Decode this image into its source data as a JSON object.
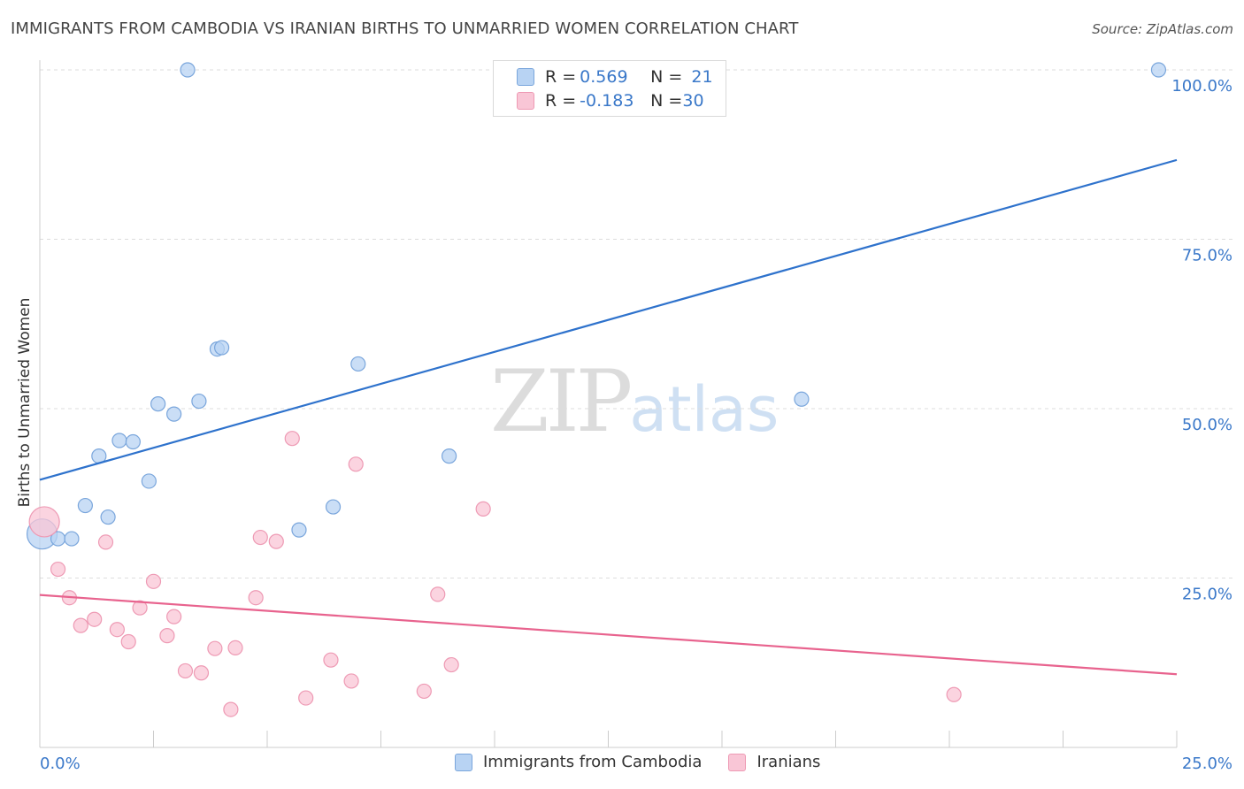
{
  "header": {
    "title": "IMMIGRANTS FROM CAMBODIA VS IRANIAN BIRTHS TO UNMARRIED WOMEN CORRELATION CHART",
    "source": "Source: ZipAtlas.com"
  },
  "watermark": {
    "zip": "ZIP",
    "atlas": "atlas"
  },
  "legend": {
    "rows": [
      {
        "r_label": "R = ",
        "r_value": "0.569",
        "n_label": "N = ",
        "n_value": "21"
      },
      {
        "r_label": "R = ",
        "r_value": "-0.183",
        "n_label": "N = ",
        "n_value": "30"
      }
    ]
  },
  "colors": {
    "blue_fill": "#b8d3f3",
    "blue_stroke": "#7aa6dc",
    "blue_line": "#2e72cc",
    "pink_fill": "#f9c6d6",
    "pink_stroke": "#ee9ab4",
    "pink_line": "#e8638e",
    "tick_label": "#3a78c9",
    "grid": "#dddddd"
  },
  "chart_data": {
    "type": "scatter",
    "title": "IMMIGRANTS FROM CAMBODIA VS IRANIAN BIRTHS TO UNMARRIED WOMEN CORRELATION CHART",
    "xlabel": "",
    "ylabel": "Births to Unmarried Women",
    "xlim": [
      0,
      25
    ],
    "ylim": [
      0,
      104
    ],
    "x_tick_labels": [
      "0.0%",
      "25.0%"
    ],
    "y_ticks": [
      25,
      50,
      75,
      100
    ],
    "y_tick_labels": [
      "25.0%",
      "50.0%",
      "75.0%",
      "100.0%"
    ],
    "grid": true,
    "legend_position": "bottom-center",
    "series": [
      {
        "name": "Immigrants from Cambodia",
        "color": "#7aa6dc",
        "points": [
          {
            "x": 0.05,
            "y": 31.5,
            "big": true
          },
          {
            "x": 0.4,
            "y": 30.8
          },
          {
            "x": 0.7,
            "y": 30.8
          },
          {
            "x": 1.0,
            "y": 35.7
          },
          {
            "x": 1.3,
            "y": 43.0
          },
          {
            "x": 1.5,
            "y": 34.0
          },
          {
            "x": 1.75,
            "y": 45.3
          },
          {
            "x": 2.05,
            "y": 45.1
          },
          {
            "x": 2.4,
            "y": 39.3
          },
          {
            "x": 2.6,
            "y": 50.7
          },
          {
            "x": 2.95,
            "y": 49.2
          },
          {
            "x": 3.25,
            "y": 100.0
          },
          {
            "x": 3.5,
            "y": 51.1
          },
          {
            "x": 3.9,
            "y": 58.8
          },
          {
            "x": 4.0,
            "y": 59.0
          },
          {
            "x": 5.7,
            "y": 32.1
          },
          {
            "x": 6.45,
            "y": 35.5
          },
          {
            "x": 7.0,
            "y": 56.6
          },
          {
            "x": 9.0,
            "y": 43.0
          },
          {
            "x": 16.75,
            "y": 51.4
          },
          {
            "x": 24.6,
            "y": 100.0
          }
        ],
        "trend": {
          "x": [
            0,
            25
          ],
          "y": [
            39.5,
            86.7
          ]
        }
      },
      {
        "name": "Iranians",
        "color": "#ee9ab4",
        "points": [
          {
            "x": 0.1,
            "y": 33.3,
            "big": true
          },
          {
            "x": 0.4,
            "y": 26.3
          },
          {
            "x": 0.65,
            "y": 22.1
          },
          {
            "x": 0.9,
            "y": 18.0
          },
          {
            "x": 1.2,
            "y": 18.9
          },
          {
            "x": 1.45,
            "y": 30.3
          },
          {
            "x": 1.7,
            "y": 17.4
          },
          {
            "x": 1.95,
            "y": 15.6
          },
          {
            "x": 2.2,
            "y": 20.6
          },
          {
            "x": 2.5,
            "y": 24.5
          },
          {
            "x": 2.8,
            "y": 16.5
          },
          {
            "x": 2.95,
            "y": 19.3
          },
          {
            "x": 3.2,
            "y": 11.3
          },
          {
            "x": 3.55,
            "y": 11.0
          },
          {
            "x": 3.85,
            "y": 14.6
          },
          {
            "x": 4.2,
            "y": 5.6
          },
          {
            "x": 4.3,
            "y": 14.7
          },
          {
            "x": 4.75,
            "y": 22.1
          },
          {
            "x": 4.85,
            "y": 31.0
          },
          {
            "x": 5.2,
            "y": 30.4
          },
          {
            "x": 5.55,
            "y": 45.6
          },
          {
            "x": 5.85,
            "y": 7.3
          },
          {
            "x": 6.4,
            "y": 12.9
          },
          {
            "x": 6.85,
            "y": 9.8
          },
          {
            "x": 6.95,
            "y": 41.8
          },
          {
            "x": 8.45,
            "y": 8.3
          },
          {
            "x": 8.75,
            "y": 22.6
          },
          {
            "x": 9.05,
            "y": 12.2
          },
          {
            "x": 9.75,
            "y": 35.2
          },
          {
            "x": 20.1,
            "y": 7.8
          }
        ],
        "trend": {
          "x": [
            0,
            25
          ],
          "y": [
            22.5,
            10.8
          ]
        }
      }
    ]
  }
}
